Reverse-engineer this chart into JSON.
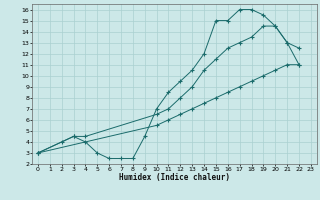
{
  "xlabel": "Humidex (Indice chaleur)",
  "xlim": [
    -0.5,
    23.5
  ],
  "ylim": [
    2,
    16.5
  ],
  "xticks": [
    0,
    1,
    2,
    3,
    4,
    5,
    6,
    7,
    8,
    9,
    10,
    11,
    12,
    13,
    14,
    15,
    16,
    17,
    18,
    19,
    20,
    21,
    22,
    23
  ],
  "yticks": [
    2,
    3,
    4,
    5,
    6,
    7,
    8,
    9,
    10,
    11,
    12,
    13,
    14,
    15,
    16
  ],
  "bg_color": "#cce8e8",
  "grid_color": "#aad0d0",
  "line_color": "#1a6b6b",
  "line1": [
    [
      0,
      3
    ],
    [
      2,
      4
    ],
    [
      3,
      4.5
    ],
    [
      4,
      4
    ],
    [
      5,
      3
    ],
    [
      6,
      2.5
    ],
    [
      7,
      2.5
    ],
    [
      8,
      2.5
    ],
    [
      9,
      4.5
    ],
    [
      10,
      7
    ],
    [
      11,
      8.5
    ],
    [
      12,
      9.5
    ],
    [
      13,
      10.5
    ],
    [
      14,
      12
    ],
    [
      15,
      15
    ],
    [
      16,
      15
    ],
    [
      17,
      16
    ],
    [
      18,
      16
    ],
    [
      19,
      15.5
    ],
    [
      20,
      14.5
    ],
    [
      21,
      13
    ],
    [
      22,
      12.5
    ]
  ],
  "line2": [
    [
      0,
      3
    ],
    [
      3,
      4.5
    ],
    [
      4,
      4.5
    ],
    [
      10,
      6.5
    ],
    [
      11,
      7
    ],
    [
      12,
      8
    ],
    [
      13,
      9
    ],
    [
      14,
      10.5
    ],
    [
      15,
      11.5
    ],
    [
      16,
      12.5
    ],
    [
      17,
      13
    ],
    [
      18,
      13.5
    ],
    [
      19,
      14.5
    ],
    [
      20,
      14.5
    ],
    [
      21,
      13
    ],
    [
      22,
      11
    ]
  ],
  "line3": [
    [
      0,
      3
    ],
    [
      10,
      5.5
    ],
    [
      11,
      6
    ],
    [
      12,
      6.5
    ],
    [
      13,
      7
    ],
    [
      14,
      7.5
    ],
    [
      15,
      8
    ],
    [
      16,
      8.5
    ],
    [
      17,
      9
    ],
    [
      18,
      9.5
    ],
    [
      19,
      10
    ],
    [
      20,
      10.5
    ],
    [
      21,
      11
    ],
    [
      22,
      11
    ]
  ]
}
